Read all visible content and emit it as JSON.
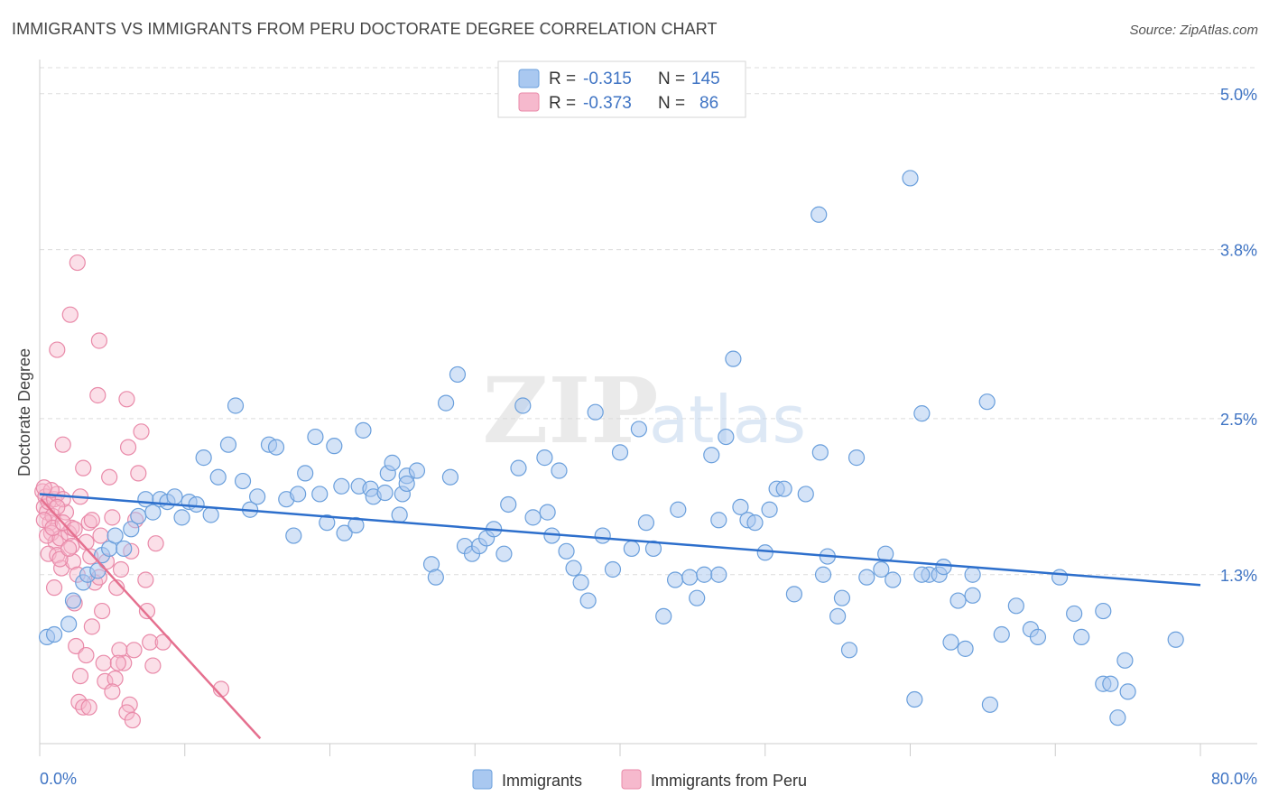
{
  "title": "IMMIGRANTS VS IMMIGRANTS FROM PERU DOCTORATE DEGREE CORRELATION CHART",
  "source": "Source: ZipAtlas.com",
  "watermark": {
    "zip": "ZIP",
    "atlas": "atlas"
  },
  "colors": {
    "blue_fill": "#a9c8f0",
    "blue_stroke": "#6a9fdc",
    "blue_line": "#2d6fcc",
    "pink_fill": "#f6b9cd",
    "pink_stroke": "#e98aa9",
    "pink_line": "#e5708f",
    "axis_label": "#3f74c4",
    "grid": "#dcdcdc"
  },
  "legend": {
    "rows": [
      {
        "r_label": "R = ",
        "r_value": "-0.315",
        "n_label": "N = ",
        "n_value": "145"
      },
      {
        "r_label": "R = ",
        "r_value": "-0.373",
        "n_label": "N = ",
        "n_value": "86"
      }
    ]
  },
  "bottom_legend": {
    "series1": "Immigrants",
    "series2": "Immigrants from Peru"
  },
  "chart_data": {
    "type": "scatter",
    "xlabel": "",
    "ylabel": "Doctorate Degree",
    "xlim": [
      0,
      80
    ],
    "ylim": [
      0,
      5.2
    ],
    "x_tick_labels": [
      "0.0%",
      "80.0%"
    ],
    "y_ticks": [
      1.3,
      2.5,
      3.8,
      5.0
    ],
    "y_tick_labels": [
      "1.3%",
      "2.5%",
      "3.8%",
      "5.0%"
    ],
    "series": [
      {
        "name": "Immigrants",
        "trend": {
          "x": [
            0,
            80
          ],
          "y": [
            1.92,
            1.22
          ]
        },
        "points": [
          [
            0.5,
            0.82
          ],
          [
            1,
            0.84
          ],
          [
            2,
            0.92
          ],
          [
            2.3,
            1.1
          ],
          [
            3,
            1.24
          ],
          [
            3.3,
            1.3
          ],
          [
            4,
            1.33
          ],
          [
            4.3,
            1.45
          ],
          [
            4.8,
            1.5
          ],
          [
            5.2,
            1.6
          ],
          [
            5.8,
            1.5
          ],
          [
            6.3,
            1.65
          ],
          [
            6.8,
            1.75
          ],
          [
            7.3,
            1.88
          ],
          [
            7.8,
            1.78
          ],
          [
            8.3,
            1.88
          ],
          [
            8.8,
            1.86
          ],
          [
            9.3,
            1.9
          ],
          [
            9.8,
            1.74
          ],
          [
            10.3,
            1.86
          ],
          [
            10.8,
            1.84
          ],
          [
            11.3,
            2.2
          ],
          [
            11.8,
            1.76
          ],
          [
            12.3,
            2.05
          ],
          [
            13,
            2.3
          ],
          [
            13.5,
            2.6
          ],
          [
            14,
            2.02
          ],
          [
            14.5,
            1.8
          ],
          [
            15,
            1.9
          ],
          [
            15.8,
            2.3
          ],
          [
            16.3,
            2.28
          ],
          [
            17,
            1.88
          ],
          [
            17.5,
            1.6
          ],
          [
            17.8,
            1.92
          ],
          [
            18.3,
            2.08
          ],
          [
            19,
            2.36
          ],
          [
            19.3,
            1.92
          ],
          [
            19.8,
            1.7
          ],
          [
            20.3,
            2.29
          ],
          [
            20.8,
            1.98
          ],
          [
            21,
            1.62
          ],
          [
            21.8,
            1.68
          ],
          [
            22,
            1.98
          ],
          [
            22.3,
            2.41
          ],
          [
            22.8,
            1.96
          ],
          [
            23,
            1.9
          ],
          [
            23.8,
            1.93
          ],
          [
            24,
            2.08
          ],
          [
            24.3,
            2.16
          ],
          [
            24.8,
            1.76
          ],
          [
            25,
            1.92
          ],
          [
            25.3,
            2.06
          ],
          [
            26,
            2.1
          ],
          [
            27,
            1.38
          ],
          [
            27.3,
            1.28
          ],
          [
            28,
            2.62
          ],
          [
            28.3,
            2.05
          ],
          [
            28.8,
            2.84
          ],
          [
            29.3,
            1.52
          ],
          [
            29.8,
            1.46
          ],
          [
            30.3,
            1.52
          ],
          [
            30.8,
            1.58
          ],
          [
            31.3,
            1.65
          ],
          [
            32,
            1.46
          ],
          [
            32.3,
            1.84
          ],
          [
            33,
            2.12
          ],
          [
            33.3,
            2.6
          ],
          [
            34,
            1.74
          ],
          [
            34.8,
            2.2
          ],
          [
            35,
            1.78
          ],
          [
            35.3,
            1.6
          ],
          [
            35.8,
            2.1
          ],
          [
            36.3,
            1.48
          ],
          [
            36.8,
            1.35
          ],
          [
            37.3,
            1.24
          ],
          [
            37.8,
            1.1
          ],
          [
            38.3,
            2.55
          ],
          [
            38.8,
            1.6
          ],
          [
            39.5,
            1.34
          ],
          [
            40,
            2.24
          ],
          [
            40.8,
            1.5
          ],
          [
            41.3,
            2.42
          ],
          [
            41.8,
            1.7
          ],
          [
            42.3,
            1.5
          ],
          [
            43,
            0.98
          ],
          [
            43.8,
            1.26
          ],
          [
            44,
            1.8
          ],
          [
            44.8,
            1.28
          ],
          [
            45.3,
            1.12
          ],
          [
            45.8,
            1.3
          ],
          [
            46.3,
            2.22
          ],
          [
            46.8,
            1.72
          ],
          [
            47.3,
            2.36
          ],
          [
            47.8,
            2.96
          ],
          [
            48.3,
            1.82
          ],
          [
            48.8,
            1.72
          ],
          [
            49.3,
            1.7
          ],
          [
            50,
            1.47
          ],
          [
            50.3,
            1.8
          ],
          [
            50.8,
            1.96
          ],
          [
            51.3,
            1.96
          ],
          [
            52,
            1.15
          ],
          [
            52.8,
            1.92
          ],
          [
            53.8,
            2.24
          ],
          [
            54.3,
            1.44
          ],
          [
            54,
            1.3
          ],
          [
            55,
            0.98
          ],
          [
            55.3,
            1.12
          ],
          [
            55.8,
            0.72
          ],
          [
            56.3,
            2.2
          ],
          [
            57,
            1.28
          ],
          [
            58,
            1.34
          ],
          [
            58.3,
            1.46
          ],
          [
            58.8,
            1.26
          ],
          [
            60,
            4.35
          ],
          [
            60.3,
            0.34
          ],
          [
            60.8,
            2.54
          ],
          [
            61.3,
            1.3
          ],
          [
            62,
            1.3
          ],
          [
            62.3,
            1.36
          ],
          [
            62.8,
            0.78
          ],
          [
            63.3,
            1.1
          ],
          [
            63.8,
            0.73
          ],
          [
            64.3,
            1.14
          ],
          [
            65.3,
            2.63
          ],
          [
            65.5,
            0.3
          ],
          [
            66.3,
            0.84
          ],
          [
            67.3,
            1.06
          ],
          [
            68.3,
            0.88
          ],
          [
            68.8,
            0.82
          ],
          [
            70.3,
            1.28
          ],
          [
            71.3,
            1.0
          ],
          [
            71.8,
            0.82
          ],
          [
            73.3,
            1.02
          ],
          [
            73.3,
            0.46
          ],
          [
            73.8,
            0.46
          ],
          [
            74.3,
            0.2
          ],
          [
            74.8,
            0.64
          ],
          [
            75,
            0.4
          ],
          [
            78.3,
            0.8
          ],
          [
            53.7,
            4.07
          ],
          [
            64.3,
            1.3
          ],
          [
            60.8,
            1.3
          ],
          [
            46.8,
            1.3
          ],
          [
            25.3,
            2.0
          ]
        ]
      },
      {
        "name": "Immigrants from Peru",
        "trend": {
          "x": [
            0.1,
            15.2
          ],
          "y": [
            1.88,
            0.04
          ]
        },
        "points": [
          [
            0.2,
            1.94
          ],
          [
            0.3,
            1.82
          ],
          [
            0.4,
            1.9
          ],
          [
            0.5,
            1.78
          ],
          [
            0.6,
            1.86
          ],
          [
            0.7,
            1.7
          ],
          [
            0.8,
            1.62
          ],
          [
            0.9,
            1.75
          ],
          [
            1,
            1.88
          ],
          [
            1.1,
            1.55
          ],
          [
            1.2,
            1.92
          ],
          [
            0.3,
            1.72
          ],
          [
            0.5,
            1.6
          ],
          [
            0.6,
            1.46
          ],
          [
            0.8,
            1.95
          ],
          [
            1,
            1.2
          ],
          [
            1.2,
            1.45
          ],
          [
            1.4,
            1.58
          ],
          [
            1.5,
            1.35
          ],
          [
            1.6,
            2.3
          ],
          [
            1.8,
            1.78
          ],
          [
            2,
            1.62
          ],
          [
            2.2,
            1.52
          ],
          [
            2.3,
            1.4
          ],
          [
            2.4,
            1.08
          ],
          [
            2.5,
            0.75
          ],
          [
            2.6,
            1.3
          ],
          [
            2.8,
            1.9
          ],
          [
            3,
            2.12
          ],
          [
            3.2,
            1.55
          ],
          [
            3.4,
            1.7
          ],
          [
            3.5,
            1.44
          ],
          [
            3.6,
            0.9
          ],
          [
            3.8,
            1.24
          ],
          [
            4,
            2.68
          ],
          [
            4.1,
            1.28
          ],
          [
            4.2,
            1.6
          ],
          [
            4.4,
            0.62
          ],
          [
            4.5,
            0.48
          ],
          [
            4.6,
            1.4
          ],
          [
            4.8,
            2.05
          ],
          [
            5,
            1.74
          ],
          [
            5.2,
            0.5
          ],
          [
            5.3,
            1.2
          ],
          [
            5.5,
            0.72
          ],
          [
            5.6,
            1.34
          ],
          [
            5.8,
            0.62
          ],
          [
            6,
            2.65
          ],
          [
            6.1,
            2.28
          ],
          [
            6.2,
            0.3
          ],
          [
            6.3,
            1.48
          ],
          [
            6.5,
            0.72
          ],
          [
            6.6,
            1.72
          ],
          [
            6.8,
            2.08
          ],
          [
            7,
            2.4
          ],
          [
            7.3,
            1.26
          ],
          [
            7.4,
            1.02
          ],
          [
            7.6,
            0.78
          ],
          [
            7.8,
            0.6
          ],
          [
            8,
            1.54
          ],
          [
            8.5,
            0.78
          ],
          [
            1.2,
            3.03
          ],
          [
            2.1,
            3.3
          ],
          [
            2.6,
            3.7
          ],
          [
            4.1,
            3.1
          ],
          [
            1.6,
            1.88
          ],
          [
            2.2,
            1.66
          ],
          [
            2.7,
            0.32
          ],
          [
            3,
            0.28
          ],
          [
            3.4,
            0.28
          ],
          [
            0.9,
            1.66
          ],
          [
            1.2,
            1.82
          ],
          [
            1.4,
            1.42
          ],
          [
            1.6,
            1.7
          ],
          [
            2,
            1.5
          ],
          [
            2.4,
            1.65
          ],
          [
            2.8,
            0.52
          ],
          [
            3.2,
            0.68
          ],
          [
            3.6,
            1.72
          ],
          [
            4.3,
            1.02
          ],
          [
            5,
            0.4
          ],
          [
            5.4,
            0.62
          ],
          [
            6,
            0.24
          ],
          [
            6.4,
            0.18
          ],
          [
            12.5,
            0.42
          ],
          [
            0.3,
            1.97
          ]
        ]
      }
    ]
  }
}
